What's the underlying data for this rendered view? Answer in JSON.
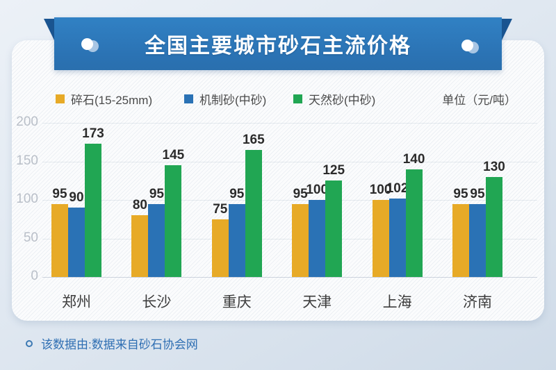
{
  "banner": {
    "title": "全国主要城市砂石主流价格"
  },
  "legend": {
    "items": [
      {
        "label": "碎石(15-25mm)",
        "color": "#E7AA27"
      },
      {
        "label": "机制砂(中砂)",
        "color": "#2A72B5"
      },
      {
        "label": "天然砂(中砂)",
        "color": "#21A653"
      }
    ],
    "unit_label": "单位（元/吨）"
  },
  "chart_data": {
    "type": "bar",
    "title": "全国主要城市砂石主流价格",
    "categories": [
      "郑州",
      "长沙",
      "重庆",
      "天津",
      "上海",
      "济南"
    ],
    "series": [
      {
        "name": "碎石(15-25mm)",
        "color": "#E7AA27",
        "values": [
          95,
          80,
          75,
          95,
          100,
          95
        ]
      },
      {
        "name": "机制砂(中砂)",
        "color": "#2A72B5",
        "values": [
          90,
          95,
          95,
          100,
          102,
          95
        ]
      },
      {
        "name": "天然砂(中砂)",
        "color": "#21A653",
        "values": [
          173,
          145,
          165,
          125,
          140,
          130
        ]
      }
    ],
    "yticks": [
      0,
      50,
      100,
      150,
      200
    ],
    "ylim": [
      0,
      200
    ],
    "ylabel": "元/吨",
    "grid": true,
    "legend_position": "top",
    "value_labels": true
  },
  "footer": {
    "text": "该数据由:数据来自砂石协会网"
  }
}
